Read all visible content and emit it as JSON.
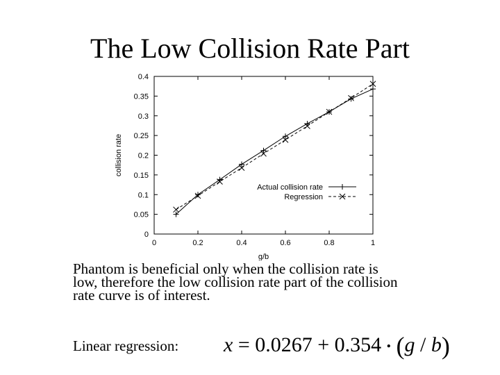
{
  "slide": {
    "title": "The Low Collision Rate Part",
    "body_lines": [
      "Phantom is beneficial only when the collision rate is",
      "low, therefore the low collision rate part of the collision",
      "rate curve is of interest."
    ],
    "regression_label": "Linear regression:",
    "formula": {
      "lhs": "x",
      "eq": "=",
      "const": "0.0267",
      "plus": "+",
      "coef": "0.354",
      "dot": "•",
      "lparen": "(",
      "g": "g",
      "slash": "/",
      "b": "b",
      "rparen": ")"
    }
  },
  "chart_data": {
    "type": "line",
    "xlabel": "g/b",
    "ylabel": "collision rate",
    "xlim": [
      0,
      1
    ],
    "ylim": [
      0,
      0.4
    ],
    "xticks": [
      "0",
      "0.2",
      "0.4",
      "0.6",
      "0.8",
      "1"
    ],
    "yticks": [
      "0",
      "0.05",
      "0.1",
      "0.15",
      "0.2",
      "0.25",
      "0.3",
      "0.35",
      "0.4"
    ],
    "legend_position": "bottom-right",
    "grid": false,
    "series": [
      {
        "name": "Actual collision rate",
        "marker": "plus",
        "line": "solid",
        "color": "#000000",
        "x": [
          0.1,
          0.2,
          0.3,
          0.4,
          0.5,
          0.6,
          0.7,
          0.8,
          0.9,
          1.0
        ],
        "y": [
          0.05,
          0.1,
          0.138,
          0.177,
          0.212,
          0.248,
          0.28,
          0.31,
          0.343,
          0.368
        ]
      },
      {
        "name": "Regression",
        "marker": "x",
        "line": "dashed",
        "color": "#000000",
        "x": [
          0.1,
          0.2,
          0.3,
          0.4,
          0.5,
          0.6,
          0.7,
          0.8,
          0.9,
          1.0
        ],
        "y": [
          0.062,
          0.097,
          0.133,
          0.168,
          0.204,
          0.239,
          0.274,
          0.31,
          0.345,
          0.381
        ]
      }
    ]
  }
}
